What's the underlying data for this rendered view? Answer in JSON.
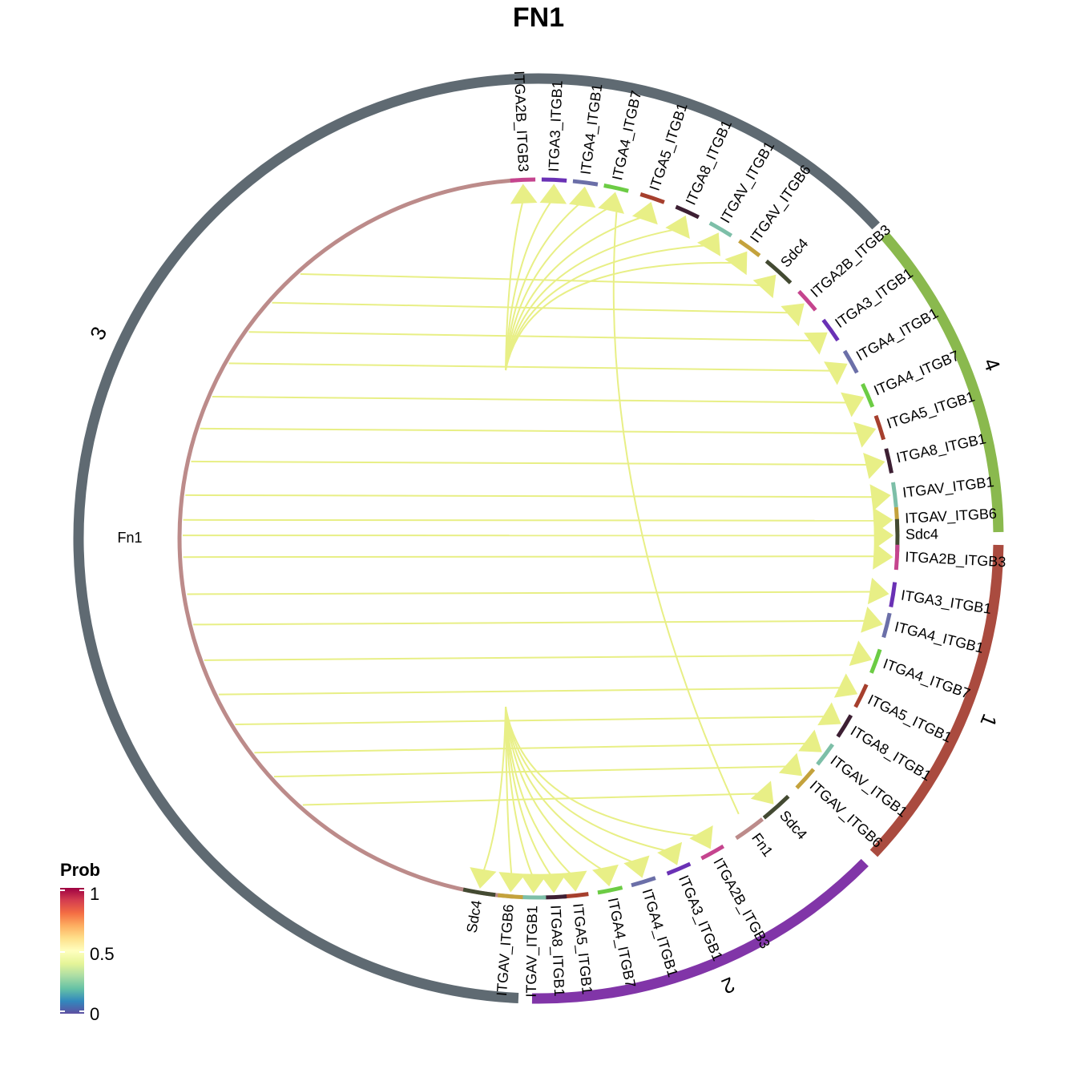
{
  "title": "FN1",
  "legend": {
    "title": "Prob",
    "ticks": [
      "1",
      "0.5",
      "0"
    ],
    "gradient": [
      "#9e0142",
      "#d53e4f",
      "#f46d43",
      "#fdae61",
      "#fee08b",
      "#ffffbf",
      "#e6f598",
      "#abdda4",
      "#66c2a5",
      "#3288bd",
      "#5e4fa2"
    ]
  },
  "link_color": "#e8ef86",
  "outer_groups": [
    {
      "label": "3",
      "color": "#5f6a72"
    },
    {
      "label": "4",
      "color": "#8ab94e"
    },
    {
      "label": "1",
      "color": "#aa4b3f"
    },
    {
      "label": "2",
      "color": "#8135a8"
    }
  ],
  "source_sector": {
    "label": "Fn1",
    "color": "#bc8b8a"
  },
  "receptor_colors": {
    "ITGA2B_ITGB3": "#c5448e",
    "ITGA3_ITGB1": "#6a31b5",
    "ITGA4_ITGB1": "#6b6fa8",
    "ITGA4_ITGB7": "#6ccc44",
    "ITGA5_ITGB1": "#a63f2d",
    "ITGA8_ITGB1": "#3d1f33",
    "ITGAV_ITGB1": "#7dbfa8",
    "ITGAV_ITGB6": "#c4a23c",
    "Sdc4": "#434a32",
    "Fn1": "#bc8b8a"
  },
  "top_receptors": [
    {
      "key": "ITGA2B_ITGB3",
      "label": "ITGA2B_ITGB3"
    },
    {
      "key": "ITGA3_ITGB1",
      "label": "ITGA3_ITGB1"
    },
    {
      "key": "ITGA4_ITGB1",
      "label": "ITGA4_ITGB1"
    },
    {
      "key": "ITGA4_ITGB7",
      "label": "ITGA4_ITGB7"
    },
    {
      "key": "ITGA5_ITGB1",
      "label": "ITGA5_ITGB1"
    },
    {
      "key": "ITGA8_ITGB1",
      "label": "ITGA8_ITGB1"
    },
    {
      "key": "ITGAV_ITGB1",
      "label": "ITGAV_ITGB1"
    },
    {
      "key": "ITGAV_ITGB6",
      "label": "ITGAV_ITGB6"
    }
  ],
  "group4_receptors": [
    {
      "key": "Sdc4",
      "label": "Sdc4"
    },
    {
      "key": "ITGA2B_ITGB3",
      "label": "ITGA2B_ITGB3"
    },
    {
      "key": "ITGA3_ITGB1",
      "label": "ITGA3_ITGB1"
    },
    {
      "key": "ITGA4_ITGB1",
      "label": "ITGA4_ITGB1"
    },
    {
      "key": "ITGA4_ITGB7",
      "label": "ITGA4_ITGB7"
    },
    {
      "key": "ITGA5_ITGB1",
      "label": "ITGA5_ITGB1"
    },
    {
      "key": "ITGA8_ITGB1",
      "label": "ITGA8_ITGB1"
    },
    {
      "key": "ITGAV_ITGB1",
      "label": "ITGAV_ITGB1"
    },
    {
      "key": "ITGAV_ITGB6",
      "label": "ITGAV_ITGB6"
    },
    {
      "key": "Sdc4",
      "label": "Sdc4"
    }
  ],
  "group1_receptors": [
    {
      "key": "ITGA2B_ITGB3",
      "label": "ITGA2B_ITGB3"
    },
    {
      "key": "ITGA3_ITGB1",
      "label": "ITGA3_ITGB1"
    },
    {
      "key": "ITGA4_ITGB1",
      "label": "ITGA4_ITGB1"
    },
    {
      "key": "ITGA4_ITGB7",
      "label": "ITGA4_ITGB7"
    },
    {
      "key": "ITGA5_ITGB1",
      "label": "ITGA5_ITGB1"
    },
    {
      "key": "ITGA8_ITGB1",
      "label": "ITGA8_ITGB1"
    },
    {
      "key": "ITGAV_ITGB1",
      "label": "ITGAV_ITGB1"
    },
    {
      "key": "ITGAV_ITGB6",
      "label": "ITGAV_ITGB6"
    },
    {
      "key": "Sdc4",
      "label": "Sdc4"
    },
    {
      "key": "Fn1",
      "label": "Fn1"
    }
  ],
  "group2_receptors": [
    {
      "key": "ITGA2B_ITGB3",
      "label": "ITGA2B_ITGB3"
    },
    {
      "key": "ITGA3_ITGB1",
      "label": "ITGA3_ITGB1"
    },
    {
      "key": "ITGA4_ITGB1",
      "label": "ITGA4_ITGB1"
    },
    {
      "key": "ITGA4_ITGB7",
      "label": "ITGA4_ITGB7"
    },
    {
      "key": "ITGA5_ITGB1",
      "label": "ITGA5_ITGB1"
    },
    {
      "key": "ITGA8_ITGB1",
      "label": "ITGA8_ITGB1"
    },
    {
      "key": "ITGAV_ITGB1",
      "label": "ITGAV_ITGB1"
    },
    {
      "key": "ITGAV_ITGB6",
      "label": "ITGAV_ITGB6"
    },
    {
      "key": "Sdc4",
      "label": "Sdc4"
    }
  ]
}
